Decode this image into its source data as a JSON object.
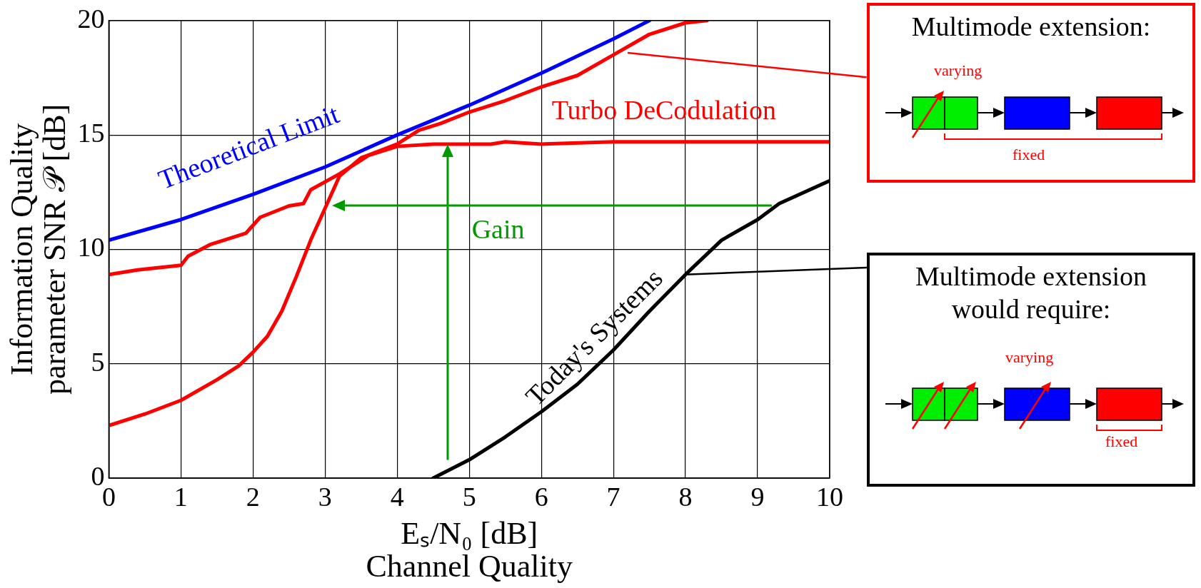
{
  "chart_data": {
    "type": "line",
    "xlabel": "Eₛ/N₀ [dB]\nChannel Quality",
    "ylabel": "Information Quality\nparameter SNR 𝒫 [dB]",
    "xlim": [
      0,
      10
    ],
    "ylim": [
      0,
      20
    ],
    "xticks": [
      0,
      1,
      2,
      3,
      4,
      5,
      6,
      7,
      8,
      9,
      10
    ],
    "yticks": [
      0,
      5,
      10,
      15,
      20
    ],
    "grid": true,
    "legend": false,
    "marker": "none",
    "series": [
      {
        "color": "#0000ff",
        "x": [
          0,
          1,
          2,
          3,
          4,
          5,
          6,
          7,
          7.5
        ],
        "values": [
          10.4,
          11.3,
          12.4,
          13.6,
          15.0,
          16.3,
          17.7,
          19.2,
          20
        ]
      },
      {
        "color": "#ff0000",
        "x": [
          0,
          0.5,
          1,
          1.5,
          1.8,
          2,
          2.2,
          2.4,
          2.6,
          2.8,
          3,
          3.2,
          3.5,
          4,
          4.3,
          4.6,
          5,
          5.5,
          6,
          6.5,
          7,
          7.5,
          8,
          8.3
        ],
        "values": [
          2.3,
          2.8,
          3.4,
          4.3,
          4.9,
          5.5,
          6.2,
          7.3,
          8.8,
          10.4,
          11.8,
          13.2,
          14.0,
          14.6,
          15.2,
          15.5,
          16.0,
          16.5,
          17.1,
          17.6,
          18.5,
          19.4,
          19.9,
          20
        ]
      },
      {
        "color": "#ff0000",
        "x": [
          0,
          0.4,
          1,
          1.1,
          1.4,
          1.9,
          2.1,
          2.5,
          2.7,
          2.8,
          3.2,
          3.6,
          4,
          4.5,
          5.3,
          5.5,
          6,
          7,
          10
        ],
        "values": [
          8.9,
          9.1,
          9.3,
          9.7,
          10.2,
          10.7,
          11.4,
          11.9,
          12.0,
          12.6,
          13.3,
          14.1,
          14.5,
          14.6,
          14.6,
          14.7,
          14.6,
          14.7,
          14.7
        ]
      },
      {
        "color": "#000000",
        "x": [
          4.5,
          5,
          5.5,
          6,
          6.5,
          7,
          7.5,
          8,
          8.5,
          9,
          9.3,
          10
        ],
        "values": [
          0,
          0.8,
          1.8,
          2.9,
          4.1,
          5.6,
          7.3,
          8.9,
          10.4,
          11.3,
          12.0,
          13.0
        ]
      }
    ],
    "annotations": [
      "Theoretical Limit",
      "Turbo DeCodulation",
      "Gain",
      "Today's Systems",
      "Multimode extension:",
      "varying",
      "fixed",
      "Multimode extension would require:",
      "varying",
      "fixed"
    ]
  }
}
